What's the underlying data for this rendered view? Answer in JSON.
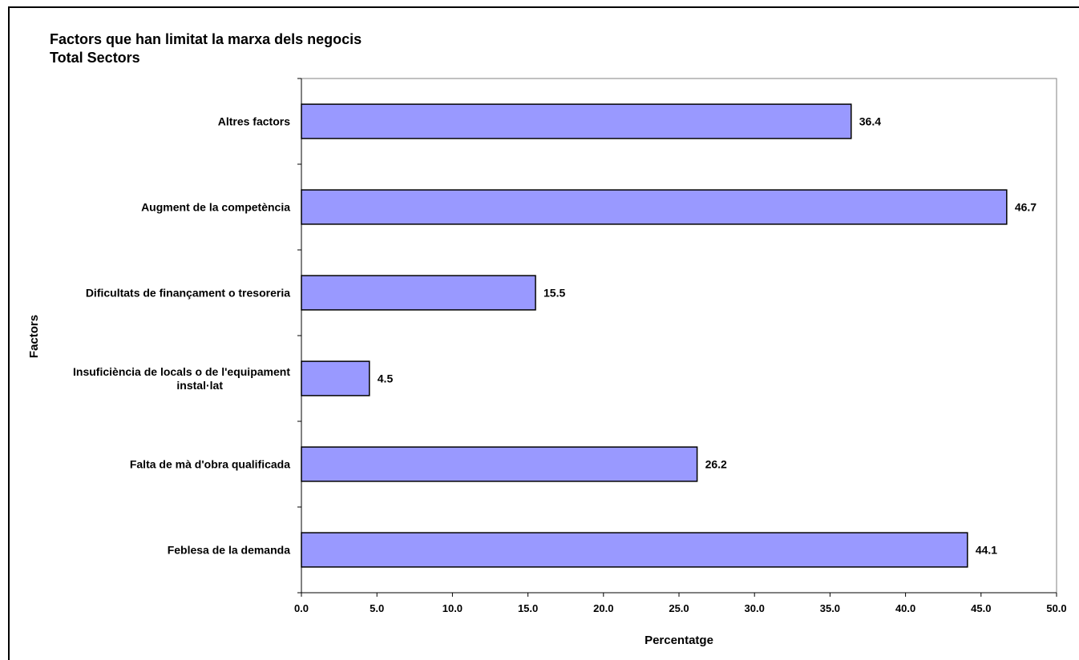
{
  "chart_data": {
    "type": "bar",
    "orientation": "horizontal",
    "title": "Factors que han limitat la marxa dels negocis",
    "subtitle": "Total Sectors",
    "xlabel": "Percentatge",
    "ylabel": "Factors",
    "xlim": [
      0,
      50
    ],
    "xticks": [
      "0.0",
      "5.0",
      "10.0",
      "15.0",
      "20.0",
      "25.0",
      "30.0",
      "35.0",
      "40.0",
      "45.0",
      "50.0"
    ],
    "categories": [
      [
        "Altres factors"
      ],
      [
        "Augment de la competència"
      ],
      [
        "Dificultats de finançament o tresoreria"
      ],
      [
        "Insuficiència de locals o de l'equipament",
        "instal·lat"
      ],
      [
        "Falta de mà d'obra qualificada"
      ],
      [
        "Feblesa de la demanda"
      ]
    ],
    "values": [
      36.4,
      46.7,
      15.5,
      4.5,
      26.2,
      44.1
    ],
    "data_labels": [
      "36.4",
      "46.7",
      "15.5",
      "4.5",
      "26.2",
      "44.1"
    ],
    "bar_color": "#9999ff",
    "bar_outline": "#000000",
    "grid": false,
    "legend": "none"
  }
}
